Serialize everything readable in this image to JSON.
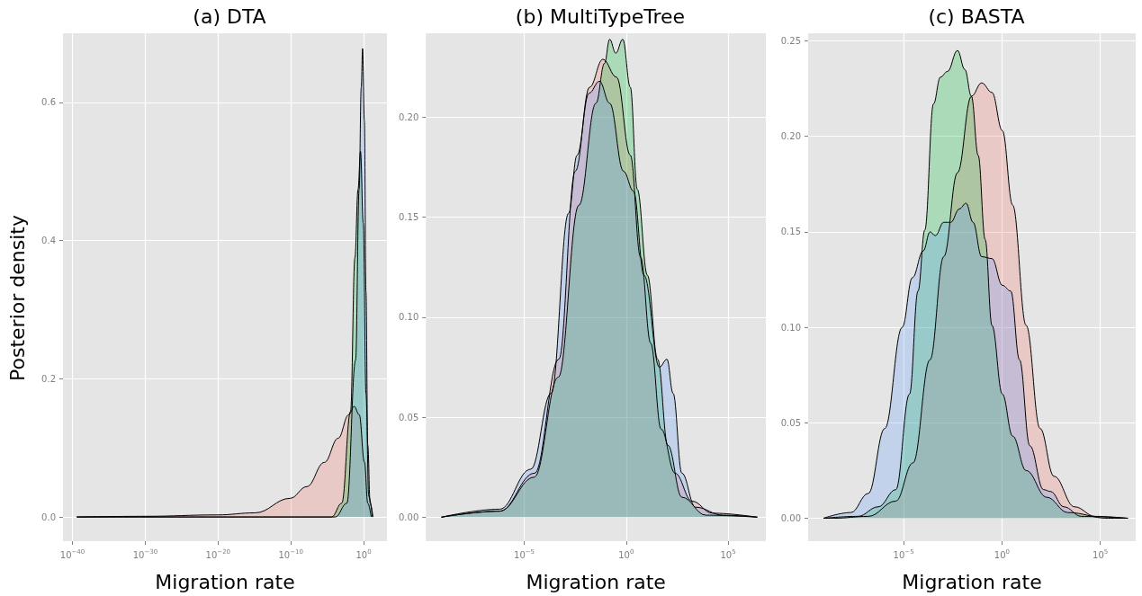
{
  "chart_data": [
    {
      "type": "area",
      "title": "(a) DTA",
      "xlabel": "Migration rate",
      "ylabel": "Posterior density",
      "log": "x",
      "grid": true,
      "marker": "none",
      "xlim": [
        5e-42,
        1600
      ],
      "ylim": [
        -0.035,
        0.7
      ],
      "xticks": [
        {
          "value": 1e-40,
          "label": "10$^{−40}$"
        },
        {
          "value": 1e-30,
          "label": "10$^{−30}$"
        },
        {
          "value": 1e-20,
          "label": "10$^{−20}$"
        },
        {
          "value": 1e-10,
          "label": "10$^{−10}$"
        },
        {
          "value": 1,
          "label": "10$^{0}$"
        }
      ],
      "yticks": [
        {
          "value": 0,
          "label": "0.0"
        },
        {
          "value": 0.2,
          "label": "0.2"
        },
        {
          "value": 0.4,
          "label": "0.4"
        },
        {
          "value": 0.6,
          "label": "0.6"
        }
      ],
      "series": [
        {
          "color": "#f8766d",
          "x": [
            4e-40,
            1e-30,
            7.9e-21,
            1.3e-15,
            7.9e-11,
            1.6e-08,
            4e-06,
            0.00032,
            0.009,
            0.05,
            0.25,
            1.3,
            3.7,
            11
          ],
          "values": [
            0,
            0.001,
            0.003,
            0.006,
            0.027,
            0.044,
            0.079,
            0.114,
            0.148,
            0.16,
            0.148,
            0.079,
            0.02,
            0
          ]
        },
        {
          "color": "#00ba38",
          "x": [
            4e-40,
            4e-05,
            0.001,
            0.016,
            0.063,
            0.17,
            0.37,
            0.89,
            2.1,
            5.1,
            16
          ],
          "values": [
            0,
            0,
            0.02,
            0.153,
            0.375,
            0.474,
            0.529,
            0.425,
            0.178,
            0.03,
            0
          ]
        },
        {
          "color": "#619cff",
          "x": [
            4e-40,
            0.00013,
            0.005,
            0.079,
            0.24,
            0.47,
            0.72,
            1.26,
            2.1,
            3.7,
            7.9,
            19
          ],
          "values": [
            0,
            0,
            0.02,
            0.227,
            0.474,
            0.622,
            0.678,
            0.573,
            0.326,
            0.104,
            0.02,
            0
          ]
        }
      ]
    },
    {
      "type": "area",
      "title": "(b) MultiTypeTree",
      "xlabel": "Migration rate",
      "log": "x",
      "grid": true,
      "marker": "none",
      "xlim": [
        1.5e-10,
        7100000.0
      ],
      "ylim": [
        -0.012,
        0.242
      ],
      "xticks": [
        {
          "value": 1e-05,
          "label": "10$^{−5}$"
        },
        {
          "value": 1,
          "label": "10$^{0}$"
        },
        {
          "value": 100000.0,
          "label": "10$^{5}$"
        }
      ],
      "yticks": [
        {
          "value": 0,
          "label": "0.00"
        },
        {
          "value": 0.05,
          "label": "0.05"
        },
        {
          "value": 0.1,
          "label": "0.10"
        },
        {
          "value": 0.15,
          "label": "0.15"
        },
        {
          "value": 0.2,
          "label": "0.20"
        }
      ],
      "series": [
        {
          "color": "#f8766d",
          "x": [
            8.7e-10,
            6.3e-07,
            3.2e-05,
            0.0005,
            0.0032,
            0.016,
            0.072,
            0.34,
            1.6,
            5.1,
            16,
            52,
            250,
            1700,
            17000,
            2700000.0
          ],
          "values": [
            0,
            0.003,
            0.022,
            0.079,
            0.173,
            0.215,
            0.229,
            0.22,
            0.181,
            0.13,
            0.087,
            0.044,
            0.022,
            0.008,
            0.002,
            0
          ]
        },
        {
          "color": "#00ba38",
          "x": [
            8.7e-10,
            6.3e-07,
            3.1e-05,
            0.00047,
            0.0048,
            0.033,
            0.087,
            0.155,
            0.31,
            0.68,
            1.6,
            3.5,
            11,
            35,
            110,
            540,
            8100,
            2700000.0
          ],
          "values": [
            0,
            0.003,
            0.02,
            0.07,
            0.156,
            0.207,
            0.227,
            0.239,
            0.232,
            0.239,
            0.215,
            0.164,
            0.121,
            0.079,
            0.036,
            0.01,
            0.001,
            0
          ]
        },
        {
          "color": "#619cff",
          "x": [
            8.7e-10,
            6.3e-07,
            2.1e-05,
            0.00021,
            0.0015,
            0.0039,
            0.015,
            0.049,
            0.155,
            0.74,
            2.3,
            7.5,
            43,
            100,
            200,
            540,
            2500,
            56000,
            2700000.0
          ],
          "values": [
            0,
            0.004,
            0.024,
            0.062,
            0.152,
            0.181,
            0.212,
            0.218,
            0.207,
            0.173,
            0.163,
            0.121,
            0.075,
            0.079,
            0.062,
            0.022,
            0.005,
            0.001,
            0
          ]
        }
      ]
    },
    {
      "type": "area",
      "title": "(c) BASTA",
      "xlabel": "Migration rate",
      "log": "x",
      "grid": true,
      "marker": "none",
      "xlim": [
        1.4e-10,
        6300000.0
      ],
      "ylim": [
        -0.012,
        0.254
      ],
      "xticks": [
        {
          "value": 1e-05,
          "label": "10$^{−5}$"
        },
        {
          "value": 1,
          "label": "10$^{0}$"
        },
        {
          "value": 100000.0,
          "label": "10$^{5}$"
        }
      ],
      "yticks": [
        {
          "value": 0,
          "label": "0.00"
        },
        {
          "value": 0.05,
          "label": "0.05"
        },
        {
          "value": 0.1,
          "label": "0.10"
        },
        {
          "value": 0.15,
          "label": "0.15"
        },
        {
          "value": 0.2,
          "label": "0.20"
        },
        {
          "value": 0.25,
          "label": "0.25"
        }
      ],
      "series": [
        {
          "color": "#f8766d",
          "x": [
            8.5e-10,
            2.8e-09,
            1.6e-07,
            4e-06,
            3e-05,
            0.00022,
            0.0011,
            0.0055,
            0.028,
            0.093,
            0.31,
            1.05,
            3.5,
            17,
            87,
            440,
            4900,
            55000,
            2500000.0
          ],
          "values": [
            0,
            0,
            0.001,
            0.009,
            0.029,
            0.083,
            0.137,
            0.181,
            0.221,
            0.228,
            0.223,
            0.203,
            0.164,
            0.101,
            0.047,
            0.022,
            0.006,
            0.001,
            0
          ]
        },
        {
          "color": "#00ba38",
          "x": [
            8.5e-10,
            4.7e-08,
            5.2e-07,
            4e-06,
            2e-05,
            5.4e-05,
            0.00012,
            0.00033,
            0.00074,
            0.0017,
            0.0055,
            0.013,
            0.028,
            0.062,
            0.14,
            0.31,
            1.05,
            3.5,
            17,
            190,
            2200,
            250000.0,
            2500000.0
          ],
          "values": [
            0,
            0.001,
            0.006,
            0.015,
            0.065,
            0.119,
            0.151,
            0.217,
            0.231,
            0.234,
            0.245,
            0.235,
            0.221,
            0.19,
            0.146,
            0.101,
            0.065,
            0.043,
            0.025,
            0.011,
            0.003,
            0,
            0
          ]
        },
        {
          "color": "#619cff",
          "x": [
            8.5e-10,
            2.1e-08,
            1.6e-07,
            1.1e-06,
            8.5e-06,
            2.8e-05,
            0.0001,
            0.00022,
            0.00041,
            0.0011,
            0.0025,
            0.0068,
            0.015,
            0.034,
            0.093,
            0.31,
            1.05,
            2.8,
            7.8,
            26,
            130,
            300,
            1400,
            11000,
            2500000.0
          ],
          "values": [
            0,
            0.003,
            0.013,
            0.047,
            0.1,
            0.126,
            0.14,
            0.15,
            0.148,
            0.155,
            0.155,
            0.162,
            0.165,
            0.155,
            0.137,
            0.136,
            0.122,
            0.119,
            0.083,
            0.038,
            0.015,
            0.014,
            0.006,
            0.001,
            0
          ]
        }
      ]
    }
  ]
}
